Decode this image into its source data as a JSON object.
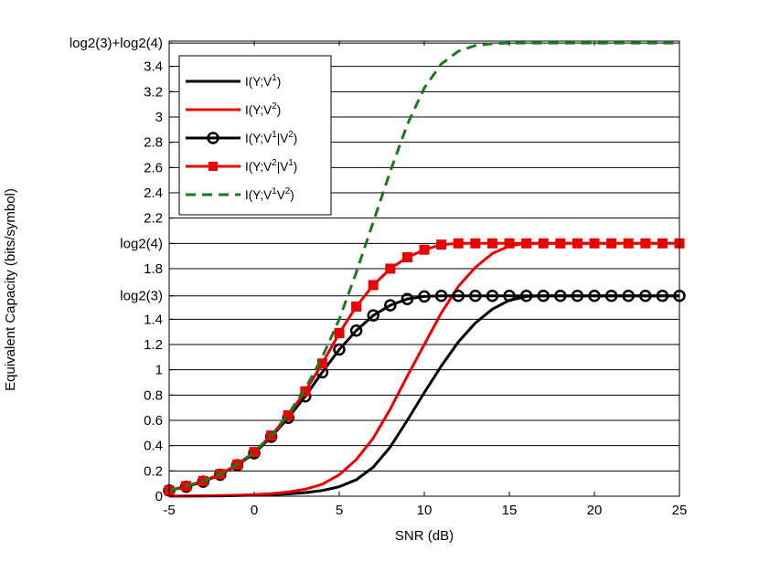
{
  "chart_data": {
    "type": "line",
    "title": "",
    "xlabel": "SNR (dB)",
    "ylabel": "Equivalent Capacity (bits/symbol)",
    "xlim": [
      -5,
      25
    ],
    "ylim": [
      0,
      3.6
    ],
    "x_ticks": [
      -5,
      0,
      5,
      10,
      15,
      20,
      25
    ],
    "y_ticks": [
      {
        "value": 0,
        "label": "0"
      },
      {
        "value": 0.2,
        "label": "0.2"
      },
      {
        "value": 0.4,
        "label": "0.4"
      },
      {
        "value": 0.6,
        "label": "0.6"
      },
      {
        "value": 0.8,
        "label": "0.8"
      },
      {
        "value": 1.0,
        "label": "1"
      },
      {
        "value": 1.2,
        "label": "1.2"
      },
      {
        "value": 1.4,
        "label": "1.4"
      },
      {
        "value": 1.585,
        "label": "log2(3)"
      },
      {
        "value": 1.8,
        "label": "1.8"
      },
      {
        "value": 2.0,
        "label": "log2(4)"
      },
      {
        "value": 2.2,
        "label": "2.2"
      },
      {
        "value": 2.4,
        "label": "2.4"
      },
      {
        "value": 2.6,
        "label": "2.6"
      },
      {
        "value": 2.8,
        "label": "2.8"
      },
      {
        "value": 3.0,
        "label": "3"
      },
      {
        "value": 3.2,
        "label": "3.2"
      },
      {
        "value": 3.4,
        "label": "3.4"
      },
      {
        "value": 3.585,
        "label": "log2(3)+log2(4)"
      }
    ],
    "grid": "horizontal",
    "legend_position": "top-left",
    "x": [
      -5,
      -4,
      -3,
      -2,
      -1,
      0,
      1,
      2,
      3,
      4,
      5,
      6,
      7,
      8,
      9,
      10,
      11,
      12,
      13,
      14,
      15,
      16,
      17,
      18,
      19,
      20,
      21,
      22,
      23,
      24,
      25
    ],
    "series": [
      {
        "name": "I(Y;V1)",
        "legend": {
          "base": "I(Y;V",
          "sup": "1",
          "tail": ")"
        },
        "color": "#000000",
        "dash": "solid",
        "marker": "none",
        "values": [
          0.0,
          0.001,
          0.002,
          0.003,
          0.005,
          0.008,
          0.012,
          0.018,
          0.028,
          0.045,
          0.075,
          0.13,
          0.23,
          0.39,
          0.6,
          0.82,
          1.03,
          1.22,
          1.37,
          1.48,
          1.55,
          1.58,
          1.585,
          1.585,
          1.585,
          1.585,
          1.585,
          1.585,
          1.585,
          1.585,
          1.585
        ]
      },
      {
        "name": "I(Y;V2)",
        "legend": {
          "base": "I(Y;V",
          "sup": "2",
          "tail": ")"
        },
        "color": "#ee0000",
        "dash": "solid",
        "marker": "none",
        "values": [
          0.0,
          0.002,
          0.003,
          0.005,
          0.008,
          0.013,
          0.02,
          0.033,
          0.055,
          0.095,
          0.17,
          0.29,
          0.46,
          0.69,
          0.95,
          1.2,
          1.45,
          1.66,
          1.81,
          1.92,
          1.98,
          2.0,
          2.0,
          2.0,
          2.0,
          2.0,
          2.0,
          2.0,
          2.0,
          2.0,
          2.0
        ]
      },
      {
        "name": "I(Y;V1|V2)",
        "legend": {
          "base": "I(Y;V",
          "sup": "1",
          "tail": "|V",
          "sup2": "2",
          "tail2": ")"
        },
        "color": "#000000",
        "dash": "solid",
        "marker": "circle",
        "values": [
          0.045,
          0.075,
          0.115,
          0.17,
          0.245,
          0.34,
          0.47,
          0.62,
          0.79,
          0.98,
          1.16,
          1.31,
          1.43,
          1.51,
          1.56,
          1.58,
          1.585,
          1.585,
          1.585,
          1.585,
          1.585,
          1.585,
          1.585,
          1.585,
          1.585,
          1.585,
          1.585,
          1.585,
          1.585,
          1.585,
          1.585
        ]
      },
      {
        "name": "I(Y;V2|V1)",
        "legend": {
          "base": "I(Y;V",
          "sup": "2",
          "tail": "|V",
          "sup2": "1",
          "tail2": ")"
        },
        "color": "#ee0000",
        "dash": "solid",
        "marker": "square",
        "values": [
          0.045,
          0.08,
          0.12,
          0.175,
          0.25,
          0.35,
          0.48,
          0.64,
          0.83,
          1.05,
          1.29,
          1.5,
          1.67,
          1.8,
          1.89,
          1.95,
          1.99,
          2.0,
          2.0,
          2.0,
          2.0,
          2.0,
          2.0,
          2.0,
          2.0,
          2.0,
          2.0,
          2.0,
          2.0,
          2.0,
          2.0
        ]
      },
      {
        "name": "I(Y;V1V2)",
        "legend": {
          "base": "I(Y;V",
          "sup": "1",
          "tail": "V",
          "sup2": "2",
          "tail2": ")"
        },
        "color": "#1a7a1a",
        "dash": "dashed",
        "marker": "none",
        "values": [
          0.045,
          0.08,
          0.12,
          0.175,
          0.25,
          0.35,
          0.48,
          0.65,
          0.85,
          1.1,
          1.4,
          1.77,
          2.17,
          2.57,
          2.94,
          3.23,
          3.42,
          3.52,
          3.565,
          3.58,
          3.585,
          3.585,
          3.585,
          3.585,
          3.585,
          3.585,
          3.585,
          3.585,
          3.585,
          3.585,
          3.585
        ]
      }
    ]
  }
}
